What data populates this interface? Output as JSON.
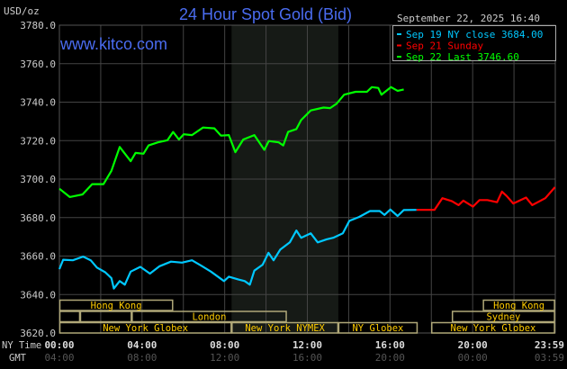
{
  "chart_data": {
    "type": "line",
    "title": "24 Hour Spot Gold (Bid)",
    "watermark": "www.kitco.com",
    "timestamp": "September 22, 2025 16:40",
    "ylabel": "USD/oz",
    "ylim": [
      3620,
      3780
    ],
    "yticks": [
      "3780.0",
      "3760.0",
      "3740.0",
      "3720.0",
      "3700.0",
      "3680.0",
      "3660.0",
      "3640.0",
      "3620.0"
    ],
    "xlim": [
      "00:00",
      "23:59"
    ],
    "grid": true,
    "x_axis_rows": [
      {
        "label": "NY Time",
        "ticks": [
          "00:00",
          "04:00",
          "08:00",
          "12:00",
          "16:00",
          "20:00",
          "23:59"
        ]
      },
      {
        "label": "GMT",
        "ticks": [
          "04:00",
          "08:00",
          "12:00",
          "16:00",
          "20:00",
          "00:00",
          "03:59"
        ]
      }
    ],
    "shaded_region": [
      "08:20",
      "13:30"
    ],
    "legend_position": "top-right",
    "series": [
      {
        "name": "Sep 19 NY close 3684.00",
        "color": "#00c8ff",
        "x": [
          "00:00",
          "00:11",
          "00:39",
          "01:09",
          "01:31",
          "01:49",
          "02:13",
          "02:31",
          "02:38",
          "02:55",
          "03:10",
          "03:27",
          "03:55",
          "04:23",
          "04:51",
          "05:24",
          "05:56",
          "06:25",
          "06:52",
          "07:20",
          "07:58",
          "08:12",
          "08:40",
          "08:58",
          "09:13",
          "09:26",
          "09:50",
          "10:07",
          "10:22",
          "10:41",
          "11:09",
          "11:28",
          "11:42",
          "12:10",
          "12:30",
          "12:56",
          "13:15",
          "13:43",
          "14:02",
          "14:30",
          "15:02",
          "15:30",
          "15:44",
          "16:01",
          "16:22",
          "16:40",
          "17:17"
        ],
        "y": [
          3653.2,
          3658.1,
          3657.8,
          3659.7,
          3657.8,
          3654.0,
          3651.6,
          3648.5,
          3643.1,
          3647.0,
          3645.1,
          3651.9,
          3654.4,
          3650.9,
          3654.7,
          3657.1,
          3656.6,
          3657.8,
          3655.0,
          3651.9,
          3647.0,
          3649.3,
          3647.8,
          3647.0,
          3645.1,
          3652.4,
          3655.5,
          3661.7,
          3657.8,
          3663.3,
          3667.1,
          3673.3,
          3669.5,
          3671.8,
          3667.1,
          3668.7,
          3669.5,
          3671.8,
          3678.3,
          3680.3,
          3683.4,
          3683.4,
          3681.4,
          3684.2,
          3680.8,
          3683.9,
          3684.0
        ]
      },
      {
        "name": "Sep 21 Sunday",
        "color": "#ff0000",
        "x": [
          "17:17",
          "18:09",
          "18:32",
          "19:00",
          "19:19",
          "19:33",
          "20:01",
          "20:20",
          "20:43",
          "21:11",
          "21:25",
          "21:39",
          "21:58",
          "22:35",
          "22:53",
          "23:31",
          "23:59"
        ],
        "y": [
          3684.0,
          3684.0,
          3690.1,
          3688.5,
          3686.5,
          3688.8,
          3685.7,
          3689.1,
          3689.1,
          3688.0,
          3693.5,
          3691.2,
          3687.3,
          3690.4,
          3686.5,
          3690.1,
          3695.8
        ]
      },
      {
        "name": "Sep 22 Last 3746.60",
        "color": "#00ff00",
        "x": [
          "00:00",
          "00:30",
          "01:07",
          "01:35",
          "02:08",
          "02:31",
          "02:55",
          "03:27",
          "03:41",
          "04:04",
          "04:19",
          "04:46",
          "05:14",
          "05:30",
          "05:47",
          "06:01",
          "06:25",
          "06:57",
          "07:30",
          "07:49",
          "08:12",
          "08:31",
          "08:54",
          "09:26",
          "09:55",
          "10:08",
          "10:37",
          "10:50",
          "11:04",
          "11:28",
          "11:42",
          "12:10",
          "12:47",
          "13:06",
          "13:25",
          "13:47",
          "14:20",
          "14:53",
          "15:07",
          "15:26",
          "15:35",
          "16:03",
          "16:22",
          "16:40"
        ],
        "y": [
          3695.0,
          3690.7,
          3692.0,
          3697.4,
          3697.4,
          3704.3,
          3716.7,
          3709.3,
          3713.6,
          3713.2,
          3717.5,
          3719.1,
          3720.2,
          3724.5,
          3720.6,
          3723.3,
          3722.9,
          3726.8,
          3726.4,
          3722.6,
          3722.9,
          3714.0,
          3720.6,
          3722.9,
          3715.2,
          3719.8,
          3719.1,
          3717.5,
          3724.5,
          3726.0,
          3730.7,
          3735.7,
          3737.2,
          3736.9,
          3739.2,
          3743.9,
          3745.4,
          3745.4,
          3747.8,
          3747.4,
          3743.9,
          3747.8,
          3745.9,
          3746.6
        ]
      }
    ],
    "sessions": [
      {
        "row": 1,
        "label": "Hong Kong",
        "start": "00:00",
        "end": "05:30"
      },
      {
        "row": 1,
        "label": "Hong Kong",
        "start": "20:30",
        "end": "23:59"
      },
      {
        "row": 2,
        "label": "",
        "start": "00:00",
        "end": "01:00"
      },
      {
        "row": 2,
        "label": "",
        "start": "01:00",
        "end": "03:30"
      },
      {
        "row": 2,
        "label": "London",
        "start": "03:30",
        "end": "11:00"
      },
      {
        "row": 2,
        "label": "Sydney",
        "start": "19:00",
        "end": "23:59"
      },
      {
        "row": 3,
        "label": "New York Globex",
        "start": "00:00",
        "end": "08:20"
      },
      {
        "row": 3,
        "label": "New York NYMEX",
        "start": "08:20",
        "end": "13:30"
      },
      {
        "row": 3,
        "label": "NY Globex",
        "start": "13:30",
        "end": "17:20"
      },
      {
        "row": 3,
        "label": "New York Globex",
        "start": "18:00",
        "end": "23:59"
      }
    ],
    "colors": {
      "title": "#4a6cf0",
      "watermark": "#4a6cf0",
      "session_text": "#ffcc00",
      "session_border": "#b0a878",
      "shade": "#161a16",
      "grid": "#444444"
    }
  }
}
